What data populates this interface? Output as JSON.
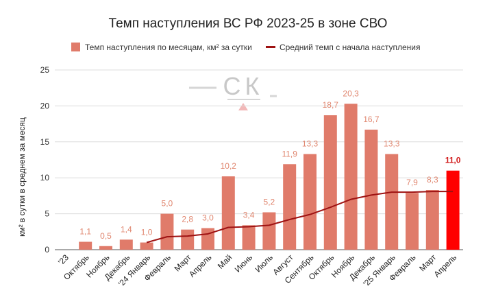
{
  "chart_data": {
    "type": "bar",
    "title": "Темп наступления ВС РФ 2023-25 в зоне СВО",
    "ylabel": "км² в сутки в среднем за месяц",
    "xlabel": "",
    "ylim": [
      0,
      25
    ],
    "yticks": [
      0,
      5,
      10,
      15,
      20,
      25
    ],
    "grid": true,
    "legend_position": "top",
    "categories": [
      "'23",
      "Октябрь",
      "Ноябрь",
      "Декабрь",
      "'24 Январь",
      "Февраль",
      "Март",
      "Апрель",
      "Май",
      "Июнь",
      "Июль",
      "Август",
      "Сентябрь",
      "Октябрь",
      "Ноябрь",
      "Декабрь",
      "'25 Январь",
      "Февраль",
      "Март",
      "Апрель"
    ],
    "series": [
      {
        "name": "Темп наступления по месяцам, км² за сутки",
        "type": "bar",
        "color": "#e07b6a",
        "highlight_color": "#ff0000",
        "highlight_index": 19,
        "values": [
          null,
          1.1,
          0.5,
          1.4,
          1.0,
          5.0,
          2.8,
          3.0,
          10.2,
          3.4,
          5.2,
          11.9,
          13.3,
          18.7,
          20.3,
          16.7,
          13.3,
          7.9,
          8.3,
          11.0
        ],
        "labels": [
          "",
          "1,1",
          "0,5",
          "1,4",
          "1,0",
          "5,0",
          "2,8",
          "3,0",
          "10,2",
          "3,4",
          "5,2",
          "11,9",
          "13,3",
          "18,7",
          "20,3",
          "16,7",
          "13,3",
          "7,9",
          "8,3",
          "11,0"
        ]
      },
      {
        "name": "Средний темп с начала наступления",
        "type": "line",
        "color": "#9e1212",
        "values": [
          null,
          null,
          null,
          null,
          1.0,
          1.8,
          1.9,
          2.2,
          3.1,
          3.2,
          3.4,
          4.2,
          4.9,
          5.9,
          7.0,
          7.6,
          8.0,
          8.0,
          8.1,
          8.1
        ]
      }
    ]
  },
  "watermark": {
    "text": "СК"
  }
}
